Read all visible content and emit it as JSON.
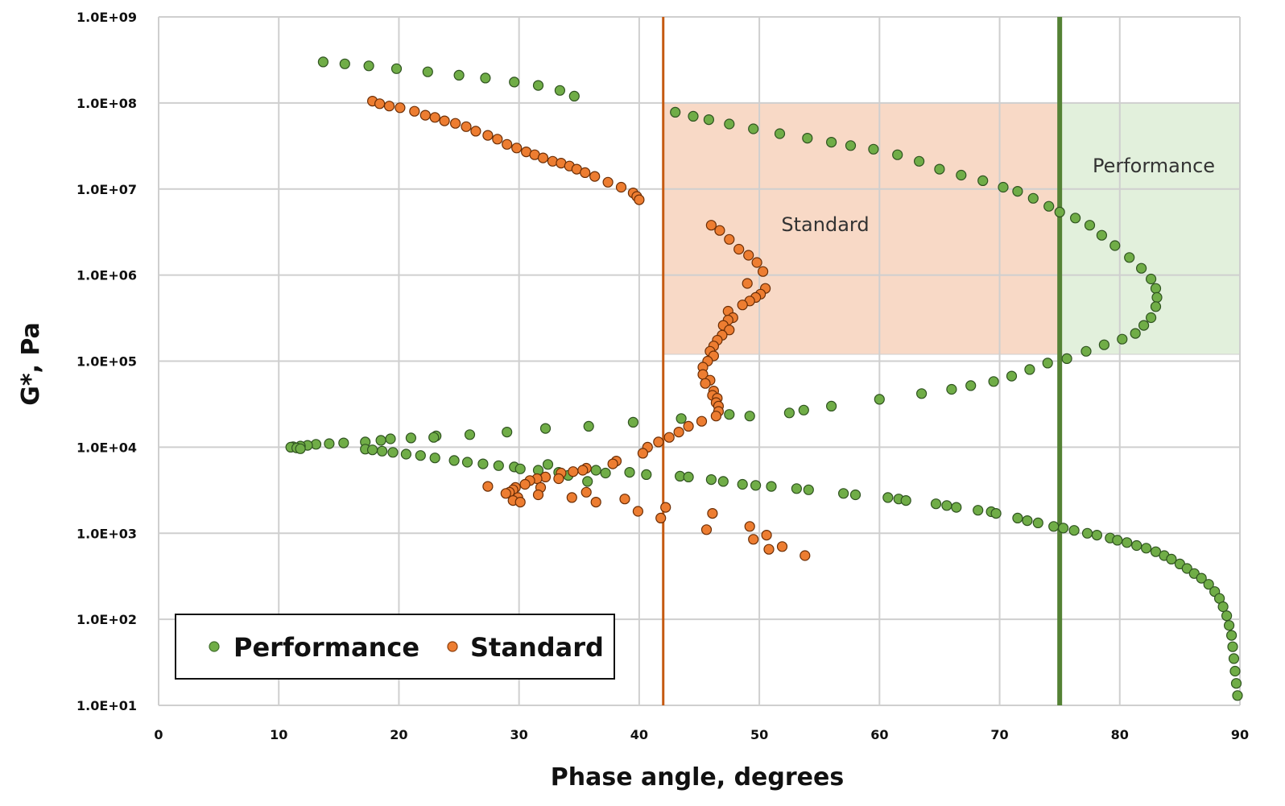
{
  "chart_data": {
    "type": "scatter",
    "xlabel": "Phase angle, degrees",
    "ylabel": "G*, Pa",
    "xlim": [
      0,
      90
    ],
    "ylim": [
      10,
      1000000000
    ],
    "y_scale": "log",
    "grid": true,
    "legend_placement": "bottom-left",
    "x_ticks": [
      "0",
      "10",
      "20",
      "30",
      "40",
      "50",
      "60",
      "70",
      "80",
      "90"
    ],
    "y_ticks": [
      "1.0E+01",
      "1.0E+02",
      "1.0E+03",
      "1.0E+04",
      "1.0E+05",
      "1.0E+06",
      "1.0E+07",
      "1.0E+08",
      "1.0E+09"
    ],
    "regions": [
      {
        "label": "Standard",
        "x": [
          42,
          75
        ],
        "y": [
          120000,
          100000000
        ],
        "color": "#f8d9c6"
      },
      {
        "label": "Performance",
        "x": [
          75,
          90
        ],
        "y": [
          120000,
          100000000
        ],
        "color": "#e2f0dc"
      }
    ],
    "vlines": [
      {
        "x": 42,
        "color": "#c55a11"
      },
      {
        "x": 75,
        "color": "#548235"
      }
    ],
    "series": [
      {
        "name": "Performance",
        "color": "#70ad47",
        "points": [
          [
            13.7,
            300000000
          ],
          [
            15.5,
            285000000
          ],
          [
            17.5,
            270000000
          ],
          [
            19.8,
            250000000
          ],
          [
            22.4,
            230000000
          ],
          [
            25,
            210000000
          ],
          [
            27.2,
            195000000
          ],
          [
            29.6,
            175000000
          ],
          [
            31.6,
            160000000
          ],
          [
            33.4,
            140000000
          ],
          [
            34.6,
            120000000
          ],
          [
            43,
            78000000
          ],
          [
            44.5,
            70000000
          ],
          [
            45.8,
            64000000
          ],
          [
            47.5,
            57000000
          ],
          [
            49.5,
            50000000
          ],
          [
            51.7,
            44000000
          ],
          [
            54,
            39000000
          ],
          [
            56,
            35000000
          ],
          [
            57.6,
            32000000
          ],
          [
            59.5,
            29000000
          ],
          [
            61.5,
            25000000
          ],
          [
            63.3,
            21000000
          ],
          [
            65,
            17000000
          ],
          [
            66.8,
            14500000
          ],
          [
            68.6,
            12500000
          ],
          [
            70.3,
            10500000
          ],
          [
            71.5,
            9400000
          ],
          [
            72.8,
            7800000
          ],
          [
            74.1,
            6300000
          ],
          [
            75,
            5400000
          ],
          [
            76.3,
            4600000
          ],
          [
            77.5,
            3800000
          ],
          [
            78.5,
            2900000
          ],
          [
            79.6,
            2200000
          ],
          [
            80.8,
            1600000
          ],
          [
            81.8,
            1200000
          ],
          [
            82.6,
            900000
          ],
          [
            83,
            700000
          ],
          [
            83.1,
            550000
          ],
          [
            83,
            430000
          ],
          [
            82.6,
            320000
          ],
          [
            82,
            260000
          ],
          [
            81.3,
            210000
          ],
          [
            80.2,
            180000
          ],
          [
            78.7,
            155000
          ],
          [
            77.2,
            130000
          ],
          [
            75.6,
            107000
          ],
          [
            74,
            95000
          ],
          [
            72.5,
            80000
          ],
          [
            71,
            67000
          ],
          [
            69.5,
            58000
          ],
          [
            67.6,
            52000
          ],
          [
            66,
            47000
          ],
          [
            63.5,
            42000
          ],
          [
            60,
            36000
          ],
          [
            56,
            30000
          ],
          [
            53.7,
            27000
          ],
          [
            52.5,
            25000
          ],
          [
            49.2,
            23000
          ],
          [
            47.5,
            24000
          ],
          [
            43.5,
            21500
          ],
          [
            39.5,
            19500
          ],
          [
            35.8,
            17500
          ],
          [
            32.2,
            16500
          ],
          [
            29,
            15000
          ],
          [
            25.9,
            14000
          ],
          [
            23.1,
            13500
          ],
          [
            22.9,
            13000
          ],
          [
            21,
            12800
          ],
          [
            19.3,
            12500
          ],
          [
            18.5,
            12000
          ],
          [
            17.2,
            11500
          ],
          [
            15.4,
            11200
          ],
          [
            14.2,
            11000
          ],
          [
            13.1,
            10800
          ],
          [
            12.4,
            10500
          ],
          [
            11.8,
            10300
          ],
          [
            11.2,
            10100
          ],
          [
            11,
            10000
          ],
          [
            11.5,
            9800
          ],
          [
            11.8,
            9600
          ],
          [
            17.2,
            9500
          ],
          [
            17.8,
            9300
          ],
          [
            18.6,
            9000
          ],
          [
            19.5,
            8700
          ],
          [
            20.6,
            8300
          ],
          [
            21.8,
            8000
          ],
          [
            23,
            7500
          ],
          [
            24.6,
            7000
          ],
          [
            25.7,
            6700
          ],
          [
            27,
            6400
          ],
          [
            28.3,
            6100
          ],
          [
            29.6,
            5900
          ],
          [
            30.1,
            5600
          ],
          [
            31.6,
            5400
          ],
          [
            32.4,
            6300
          ],
          [
            33.3,
            5100
          ],
          [
            34.1,
            4700
          ],
          [
            35.7,
            4000
          ],
          [
            36.4,
            5400
          ],
          [
            37.2,
            5000
          ],
          [
            39.2,
            5100
          ],
          [
            40.6,
            4800
          ],
          [
            43.4,
            4600
          ],
          [
            44.1,
            4500
          ],
          [
            46,
            4200
          ],
          [
            47,
            4000
          ],
          [
            48.6,
            3700
          ],
          [
            49.7,
            3600
          ],
          [
            51,
            3500
          ],
          [
            53.1,
            3300
          ],
          [
            54.1,
            3200
          ],
          [
            57,
            2900
          ],
          [
            58,
            2800
          ],
          [
            60.7,
            2600
          ],
          [
            61.6,
            2500
          ],
          [
            62.2,
            2400
          ],
          [
            64.7,
            2200
          ],
          [
            65.6,
            2100
          ],
          [
            66.4,
            2000
          ],
          [
            68.2,
            1850
          ],
          [
            69.3,
            1780
          ],
          [
            69.7,
            1700
          ],
          [
            71.5,
            1500
          ],
          [
            72.3,
            1400
          ],
          [
            73.2,
            1320
          ],
          [
            74.5,
            1200
          ],
          [
            75.3,
            1150
          ],
          [
            76.2,
            1080
          ],
          [
            77.3,
            1000
          ],
          [
            78.1,
            950
          ],
          [
            79.2,
            880
          ],
          [
            79.8,
            830
          ],
          [
            80.6,
            780
          ],
          [
            81.4,
            720
          ],
          [
            82.2,
            670
          ],
          [
            83,
            610
          ],
          [
            83.7,
            550
          ],
          [
            84.3,
            500
          ],
          [
            85,
            440
          ],
          [
            85.6,
            390
          ],
          [
            86.2,
            340
          ],
          [
            86.8,
            300
          ],
          [
            87.4,
            255
          ],
          [
            87.9,
            210
          ],
          [
            88.3,
            175
          ],
          [
            88.6,
            140
          ],
          [
            88.9,
            110
          ],
          [
            89.1,
            85
          ],
          [
            89.3,
            65
          ],
          [
            89.4,
            48
          ],
          [
            89.5,
            35
          ],
          [
            89.6,
            25
          ],
          [
            89.7,
            18
          ],
          [
            89.8,
            13
          ]
        ]
      },
      {
        "name": "Standard",
        "color": "#ed7d31",
        "points": [
          [
            17.8,
            105000000
          ],
          [
            18.4,
            98000000
          ],
          [
            19.2,
            92000000
          ],
          [
            20.1,
            88000000
          ],
          [
            21.3,
            80000000
          ],
          [
            22.2,
            72000000
          ],
          [
            23,
            68000000
          ],
          [
            23.8,
            62000000
          ],
          [
            24.7,
            58000000
          ],
          [
            25.6,
            53000000
          ],
          [
            26.4,
            47000000
          ],
          [
            27.4,
            42000000
          ],
          [
            28.2,
            38000000
          ],
          [
            29,
            33000000
          ],
          [
            29.8,
            30000000
          ],
          [
            30.6,
            27000000
          ],
          [
            31.3,
            25000000
          ],
          [
            32,
            23000000
          ],
          [
            32.8,
            21000000
          ],
          [
            33.5,
            20000000
          ],
          [
            34.2,
            18500000
          ],
          [
            34.8,
            17000000
          ],
          [
            35.5,
            15500000
          ],
          [
            36.3,
            14000000
          ],
          [
            37.4,
            12000000
          ],
          [
            38.5,
            10500000
          ],
          [
            39.5,
            9000000
          ],
          [
            39.8,
            8200000
          ],
          [
            40,
            7500000
          ],
          [
            46,
            3800000
          ],
          [
            46.7,
            3300000
          ],
          [
            47.5,
            2600000
          ],
          [
            48.3,
            2000000
          ],
          [
            49.1,
            1700000
          ],
          [
            49.8,
            1400000
          ],
          [
            50.3,
            1100000
          ],
          [
            49,
            800000
          ],
          [
            50.5,
            700000
          ],
          [
            50.1,
            600000
          ],
          [
            49.7,
            550000
          ],
          [
            49.2,
            500000
          ],
          [
            48.6,
            450000
          ],
          [
            47.4,
            380000
          ],
          [
            47.8,
            320000
          ],
          [
            47.4,
            300000
          ],
          [
            47,
            260000
          ],
          [
            47.5,
            230000
          ],
          [
            46.9,
            200000
          ],
          [
            46.5,
            175000
          ],
          [
            46.2,
            150000
          ],
          [
            45.9,
            130000
          ],
          [
            46.2,
            115000
          ],
          [
            45.7,
            100000
          ],
          [
            45.3,
            85000
          ],
          [
            45.3,
            70000
          ],
          [
            45.9,
            60000
          ],
          [
            45.5,
            55000
          ],
          [
            46.2,
            45000
          ],
          [
            46.1,
            40000
          ],
          [
            46.5,
            37000
          ],
          [
            46.4,
            33000
          ],
          [
            46.6,
            30000
          ],
          [
            46.6,
            26000
          ],
          [
            46.4,
            23000
          ],
          [
            45.2,
            20000
          ],
          [
            44.1,
            17500
          ],
          [
            43.3,
            15000
          ],
          [
            42.5,
            13000
          ],
          [
            41.6,
            11500
          ],
          [
            40.7,
            10000
          ],
          [
            40.3,
            8500
          ],
          [
            38.1,
            6900
          ],
          [
            37.8,
            6400
          ],
          [
            35.6,
            5700
          ],
          [
            35.3,
            5400
          ],
          [
            34.5,
            5200
          ],
          [
            33.5,
            5000
          ],
          [
            33.3,
            4300
          ],
          [
            32.2,
            4500
          ],
          [
            31.5,
            4300
          ],
          [
            30.9,
            4100
          ],
          [
            30.5,
            3700
          ],
          [
            29.7,
            3400
          ],
          [
            29.5,
            3200
          ],
          [
            29.2,
            3000
          ],
          [
            28.9,
            2900
          ],
          [
            29.9,
            2600
          ],
          [
            29.5,
            2400
          ],
          [
            30.1,
            2300
          ],
          [
            27.4,
            3500
          ],
          [
            31.8,
            3400
          ],
          [
            31.6,
            2800
          ],
          [
            34.4,
            2600
          ],
          [
            35.6,
            3000
          ],
          [
            36.4,
            2300
          ],
          [
            38.8,
            2500
          ],
          [
            39.9,
            1800
          ],
          [
            42.2,
            2000
          ],
          [
            41.8,
            1500
          ],
          [
            46.1,
            1700
          ],
          [
            45.6,
            1100
          ],
          [
            49.2,
            1200
          ],
          [
            49.5,
            850
          ],
          [
            50.6,
            950
          ],
          [
            50.8,
            650
          ],
          [
            51.9,
            700
          ],
          [
            53.8,
            550
          ]
        ]
      }
    ]
  }
}
